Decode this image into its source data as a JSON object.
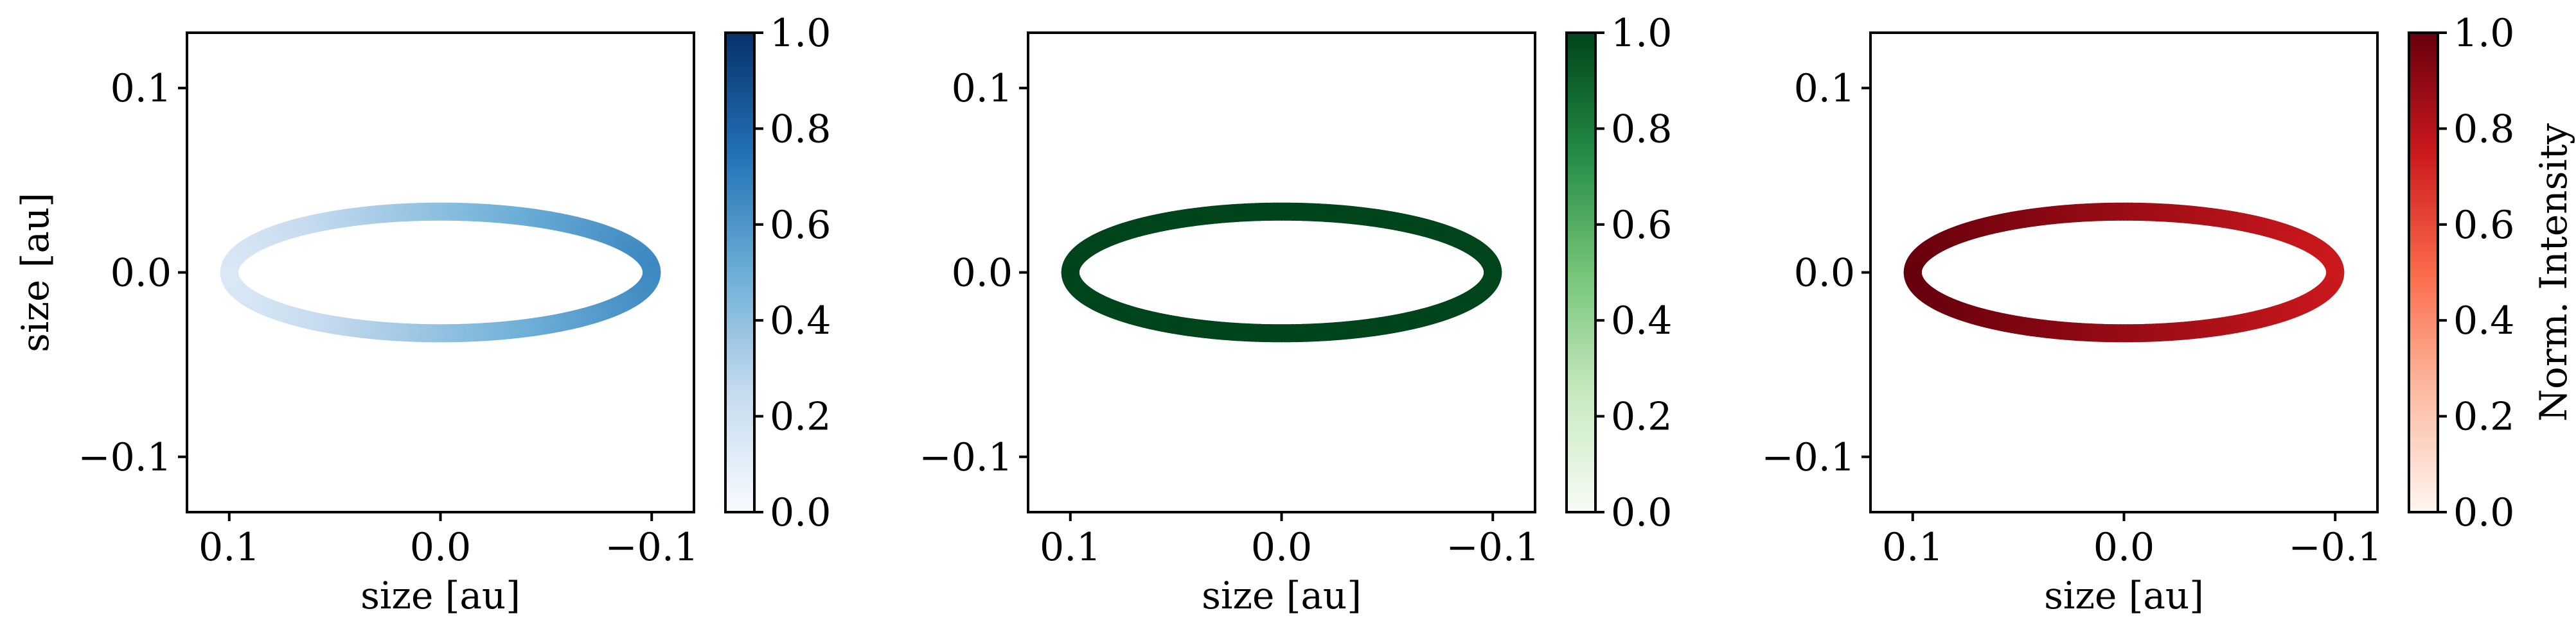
{
  "chart_data": [
    {
      "type": "line",
      "title": "",
      "xlabel": "size [au]",
      "ylabel": "size [au]",
      "xlim": [
        0.12,
        -0.12
      ],
      "ylim": [
        -0.13,
        0.13
      ],
      "x_ticks": [
        0.1,
        0.0,
        -0.1
      ],
      "x_tick_labels": [
        "0.1",
        "0.0",
        "−0.1"
      ],
      "y_ticks": [
        0.1,
        0.0,
        -0.1
      ],
      "y_tick_labels": [
        "0.1",
        "0.0",
        "−0.1"
      ],
      "grid": false,
      "ring": {
        "semi_axis_x": 0.1,
        "semi_axis_y": 0.033,
        "intensity_model": "linear_in_x",
        "intensity_at_x_plus": 0.15,
        "intensity_at_x_minus": 0.65
      },
      "colorbar": {
        "colormap": "Blues",
        "colors": [
          "#f7fbff",
          "#c6dbef",
          "#6baed6",
          "#2171b5",
          "#08306b"
        ],
        "range": [
          0.0,
          1.0
        ],
        "ticks": [
          "0.0",
          "0.2",
          "0.4",
          "0.6",
          "0.8",
          "1.0"
        ],
        "label": ""
      }
    },
    {
      "type": "line",
      "title": "",
      "xlabel": "size [au]",
      "ylabel": "",
      "xlim": [
        0.12,
        -0.12
      ],
      "ylim": [
        -0.13,
        0.13
      ],
      "x_ticks": [
        0.1,
        0.0,
        -0.1
      ],
      "x_tick_labels": [
        "0.1",
        "0.0",
        "−0.1"
      ],
      "y_ticks": [
        0.1,
        0.0,
        -0.1
      ],
      "y_tick_labels": [
        "0.1",
        "0.0",
        "−0.1"
      ],
      "grid": false,
      "ring": {
        "semi_axis_x": 0.1,
        "semi_axis_y": 0.033,
        "intensity_model": "uniform",
        "intensity": 1.0
      },
      "colorbar": {
        "colormap": "Greens",
        "colors": [
          "#f7fcf5",
          "#c7e9c0",
          "#74c476",
          "#238b45",
          "#00441b"
        ],
        "range": [
          0.0,
          1.0
        ],
        "ticks": [
          "0.0",
          "0.2",
          "0.4",
          "0.6",
          "0.8",
          "1.0"
        ],
        "label": ""
      }
    },
    {
      "type": "line",
      "title": "",
      "xlabel": "size [au]",
      "ylabel": "",
      "xlim": [
        0.12,
        -0.12
      ],
      "ylim": [
        -0.13,
        0.13
      ],
      "x_ticks": [
        0.1,
        0.0,
        -0.1
      ],
      "x_tick_labels": [
        "0.1",
        "0.0",
        "−0.1"
      ],
      "y_ticks": [
        0.1,
        0.0,
        -0.1
      ],
      "y_tick_labels": [
        "0.1",
        "0.0",
        "−0.1"
      ],
      "grid": false,
      "ring": {
        "semi_axis_x": 0.1,
        "semi_axis_y": 0.033,
        "intensity_model": "linear_in_x",
        "intensity_at_x_plus": 1.0,
        "intensity_at_x_minus": 0.75
      },
      "colorbar": {
        "colormap": "Reds",
        "colors": [
          "#fff5f0",
          "#fcbba1",
          "#fb6a4a",
          "#cb181d",
          "#67000d"
        ],
        "range": [
          0.0,
          1.0
        ],
        "ticks": [
          "0.0",
          "0.2",
          "0.4",
          "0.6",
          "0.8",
          "1.0"
        ],
        "label": "Norm. Intensity"
      }
    }
  ]
}
